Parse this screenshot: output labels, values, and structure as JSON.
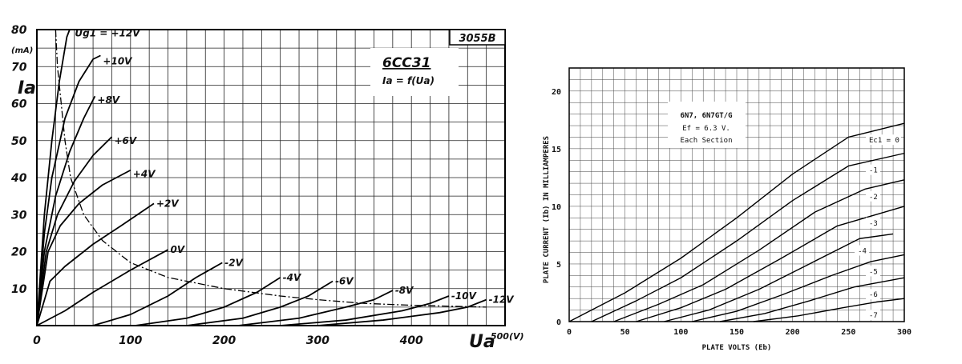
{
  "chart_data": [
    {
      "type": "line",
      "id": "6cc31",
      "badge": "3055B",
      "title": "6CC31",
      "subtitle": "Ia = f(Ua)",
      "xlabel": "Ua",
      "xunit": "500(V)",
      "ylabel": "Ia",
      "yunit": "(mA)",
      "xlim": [
        0,
        500
      ],
      "ylim": [
        0,
        80
      ],
      "xticks": [
        {
          "value": 0,
          "label": "0"
        },
        {
          "value": 100,
          "label": "100"
        },
        {
          "value": 200,
          "label": "200"
        },
        {
          "value": 300,
          "label": "300"
        },
        {
          "value": 400,
          "label": "400"
        }
      ],
      "yticks": [
        {
          "value": 10,
          "label": "10"
        },
        {
          "value": 20,
          "label": "20"
        },
        {
          "value": 30,
          "label": "30"
        },
        {
          "value": 40,
          "label": "40"
        },
        {
          "value": 50,
          "label": "50"
        },
        {
          "value": 60,
          "label": "60"
        },
        {
          "value": 70,
          "label": "70"
        },
        {
          "value": 80,
          "label": "80"
        }
      ],
      "grid": true,
      "series": [
        {
          "name": "Ug1 = +12V",
          "lx": 38,
          "ly": 79,
          "points": [
            [
              0,
              0
            ],
            [
              8,
              30
            ],
            [
              16,
              50
            ],
            [
              24,
              66
            ],
            [
              32,
              78
            ],
            [
              35,
              80
            ]
          ]
        },
        {
          "name": "+10V",
          "lx": 68,
          "ly": 71.5,
          "points": [
            [
              0,
              0
            ],
            [
              8,
              25
            ],
            [
              16,
              40
            ],
            [
              30,
              56
            ],
            [
              45,
              66
            ],
            [
              60,
              72
            ],
            [
              68,
              73
            ]
          ]
        },
        {
          "name": "+8V",
          "lx": 62,
          "ly": 61,
          "points": [
            [
              0,
              0
            ],
            [
              8,
              20
            ],
            [
              20,
              35
            ],
            [
              35,
              47
            ],
            [
              50,
              56
            ],
            [
              62,
              62
            ]
          ]
        },
        {
          "name": "+6V",
          "lx": 80,
          "ly": 50,
          "points": [
            [
              0,
              0
            ],
            [
              10,
              20
            ],
            [
              22,
              30
            ],
            [
              40,
              39
            ],
            [
              60,
              46
            ],
            [
              80,
              51
            ]
          ]
        },
        {
          "name": "+4V",
          "lx": 100,
          "ly": 41,
          "points": [
            [
              0,
              0
            ],
            [
              12,
              20
            ],
            [
              25,
              27
            ],
            [
              45,
              33
            ],
            [
              70,
              38
            ],
            [
              100,
              42
            ]
          ]
        },
        {
          "name": "+2V",
          "lx": 125,
          "ly": 33,
          "points": [
            [
              0,
              0
            ],
            [
              14,
              12
            ],
            [
              30,
              16
            ],
            [
              60,
              22
            ],
            [
              90,
              27
            ],
            [
              125,
              33
            ]
          ]
        },
        {
          "name": "0V",
          "lx": 140,
          "ly": 20.5,
          "points": [
            [
              0,
              0
            ],
            [
              30,
              4
            ],
            [
              60,
              9
            ],
            [
              100,
              15
            ],
            [
              140,
              20.5
            ]
          ]
        },
        {
          "name": "-2V",
          "lx": 198,
          "ly": 17,
          "points": [
            [
              60,
              0
            ],
            [
              100,
              3
            ],
            [
              140,
              8
            ],
            [
              170,
              13
            ],
            [
              198,
              17
            ]
          ]
        },
        {
          "name": "-4V",
          "lx": 260,
          "ly": 13,
          "points": [
            [
              105,
              0
            ],
            [
              160,
              2
            ],
            [
              200,
              5
            ],
            [
              235,
              9
            ],
            [
              260,
              13
            ]
          ]
        },
        {
          "name": "-6V",
          "lx": 316,
          "ly": 12,
          "points": [
            [
              160,
              0
            ],
            [
              220,
              2
            ],
            [
              260,
              5
            ],
            [
              290,
              8
            ],
            [
              316,
              12
            ]
          ]
        },
        {
          "name": "-8V",
          "lx": 380,
          "ly": 9.5,
          "points": [
            [
              215,
              0
            ],
            [
              280,
              2
            ],
            [
              330,
              5
            ],
            [
              360,
              7
            ],
            [
              380,
              9.5
            ]
          ]
        },
        {
          "name": "-10V",
          "lx": 440,
          "ly": 8,
          "points": [
            [
              260,
              0
            ],
            [
              330,
              1.5
            ],
            [
              390,
              4
            ],
            [
              420,
              6
            ],
            [
              440,
              8
            ]
          ]
        },
        {
          "name": "-12V",
          "lx": 480,
          "ly": 7,
          "points": [
            [
              300,
              0
            ],
            [
              370,
              1.5
            ],
            [
              430,
              3.5
            ],
            [
              460,
              5
            ],
            [
              480,
              7
            ]
          ]
        }
      ],
      "limit_curve": [
        [
          20,
          80
        ],
        [
          22,
          70
        ],
        [
          26,
          60
        ],
        [
          30,
          50
        ],
        [
          36,
          40
        ],
        [
          50,
          30
        ],
        [
          70,
          23
        ],
        [
          100,
          17
        ],
        [
          140,
          13
        ],
        [
          200,
          10
        ],
        [
          260,
          8
        ],
        [
          300,
          7
        ],
        [
          350,
          6
        ],
        [
          400,
          5.5
        ],
        [
          480,
          5
        ]
      ]
    },
    {
      "type": "line",
      "id": "6n7",
      "title": "6N7, 6N7GT/G",
      "subtitle": "Ef = 6.3 V.",
      "note": "Each Section",
      "legend_title": "Ec1 = 0",
      "xlabel": "PLATE VOLTS (Eb)",
      "ylabel": "PLATE CURRENT (Ib) IN MILLIAMPERES",
      "xlim": [
        0,
        300
      ],
      "ylim": [
        0,
        22
      ],
      "xticks": [
        {
          "value": 0,
          "label": "0"
        },
        {
          "value": 50,
          "label": "50"
        },
        {
          "value": 100,
          "label": "100"
        },
        {
          "value": 150,
          "label": "150"
        },
        {
          "value": 200,
          "label": "200"
        },
        {
          "value": 250,
          "label": "250"
        },
        {
          "value": 300,
          "label": "300"
        }
      ],
      "yticks": [
        {
          "value": 0,
          "label": "0"
        },
        {
          "value": 5,
          "label": "5"
        },
        {
          "value": 10,
          "label": "10"
        },
        {
          "value": 15,
          "label": "15"
        },
        {
          "value": 20,
          "label": "20"
        }
      ],
      "grid": true,
      "series": [
        {
          "name": "0",
          "points": [
            [
              0,
              0
            ],
            [
              50,
              2.5
            ],
            [
              100,
              5.5
            ],
            [
              150,
              9
            ],
            [
              200,
              12.8
            ],
            [
              250,
              16
            ],
            [
              300,
              17.2
            ]
          ]
        },
        {
          "name": "-1",
          "points": [
            [
              20,
              0
            ],
            [
              60,
              1.8
            ],
            [
              100,
              3.8
            ],
            [
              150,
              7
            ],
            [
              200,
              10.5
            ],
            [
              250,
              13.5
            ],
            [
              300,
              14.6
            ]
          ]
        },
        {
          "name": "-2",
          "points": [
            [
              40,
              0
            ],
            [
              80,
              1.5
            ],
            [
              120,
              3.2
            ],
            [
              170,
              6.2
            ],
            [
              220,
              9.5
            ],
            [
              265,
              11.5
            ],
            [
              300,
              12.3
            ]
          ]
        },
        {
          "name": "-3",
          "points": [
            [
              60,
              0
            ],
            [
              100,
              1.2
            ],
            [
              140,
              2.8
            ],
            [
              190,
              5.5
            ],
            [
              240,
              8.3
            ],
            [
              300,
              10
            ]
          ]
        },
        {
          "name": "-4",
          "points": [
            [
              85,
              0
            ],
            [
              125,
              1
            ],
            [
              170,
              2.8
            ],
            [
              215,
              5
            ],
            [
              260,
              7.2
            ],
            [
              290,
              7.6
            ]
          ]
        },
        {
          "name": "-5",
          "points": [
            [
              110,
              0
            ],
            [
              150,
              0.9
            ],
            [
              190,
              2.3
            ],
            [
              235,
              4
            ],
            [
              270,
              5.2
            ],
            [
              300,
              5.8
            ]
          ]
        },
        {
          "name": "-6",
          "points": [
            [
              135,
              0
            ],
            [
              175,
              0.7
            ],
            [
              215,
              1.8
            ],
            [
              255,
              3
            ],
            [
              300,
              3.8
            ]
          ]
        },
        {
          "name": "-7",
          "points": [
            [
              165,
              0
            ],
            [
              205,
              0.5
            ],
            [
              245,
              1.2
            ],
            [
              275,
              1.7
            ],
            [
              300,
              2
            ]
          ]
        }
      ]
    }
  ]
}
